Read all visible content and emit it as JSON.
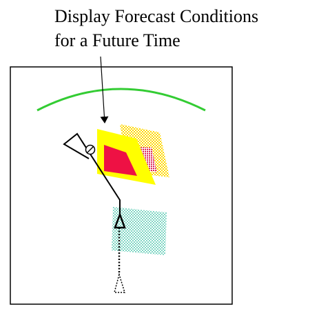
{
  "annotation": {
    "line1": "Display Forecast Conditions",
    "line2": "for a Future Time"
  },
  "colors": {
    "frame": "#000000",
    "arc": "#33cc33",
    "forecast_outer": "#ffff00",
    "forecast_inner": "#ee1144",
    "future_cell_dots": "#ffd800",
    "future_cell_core": "#dd2255",
    "trail_dots": "#7fd6c4",
    "route": "#000000"
  },
  "icons": {
    "aircraft_current": "triangle-outline-icon",
    "aircraft_past": "dotted-triangle-icon",
    "waypoint": "crossed-circle-icon",
    "pointer": "arrow-icon"
  }
}
